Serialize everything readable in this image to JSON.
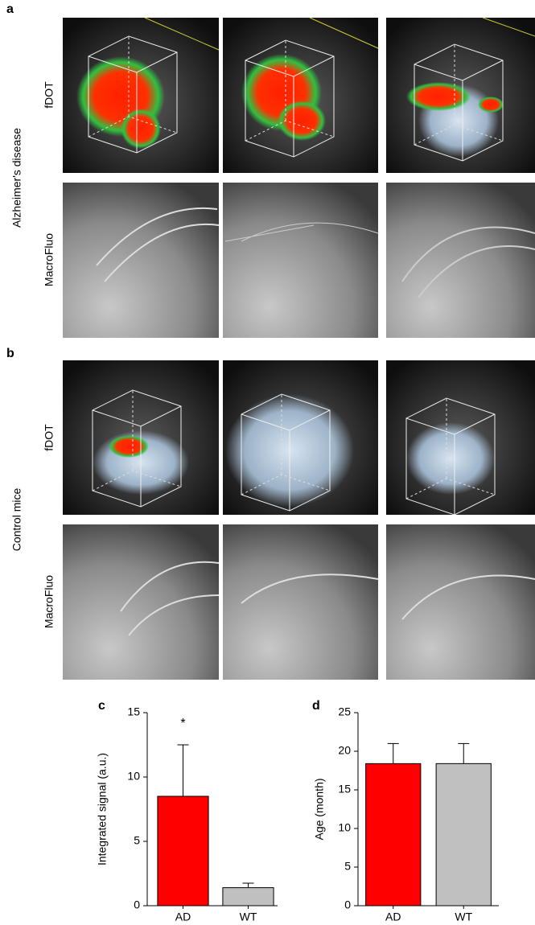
{
  "figure": {
    "panel_labels": [
      "a",
      "b",
      "c",
      "d"
    ],
    "group_labels": [
      "Alzheimer's disease",
      "Control mice"
    ],
    "row_labels": [
      "fDOT",
      "MacroFluo",
      "fDOT",
      "MacroFluo"
    ]
  },
  "chart_data": [
    {
      "type": "bar",
      "ylabel": "Integrated signal (a.u.)",
      "categories": [
        "AD",
        "WT"
      ],
      "values": [
        8.5,
        1.4
      ],
      "errors": [
        4.0,
        0.35
      ],
      "colors": [
        "#ff0000",
        "#c0c0c0"
      ],
      "annotation": "*",
      "ylim": [
        0,
        15
      ],
      "yticks": [
        0,
        5,
        10,
        15
      ]
    },
    {
      "type": "bar",
      "ylabel": "Age (month)",
      "categories": [
        "AD",
        "WT"
      ],
      "values": [
        18.4,
        18.4
      ],
      "errors": [
        2.6,
        2.6
      ],
      "colors": [
        "#ff0000",
        "#c0c0c0"
      ],
      "ylim": [
        0,
        25
      ],
      "yticks": [
        0,
        5,
        10,
        15,
        20,
        25
      ]
    }
  ]
}
